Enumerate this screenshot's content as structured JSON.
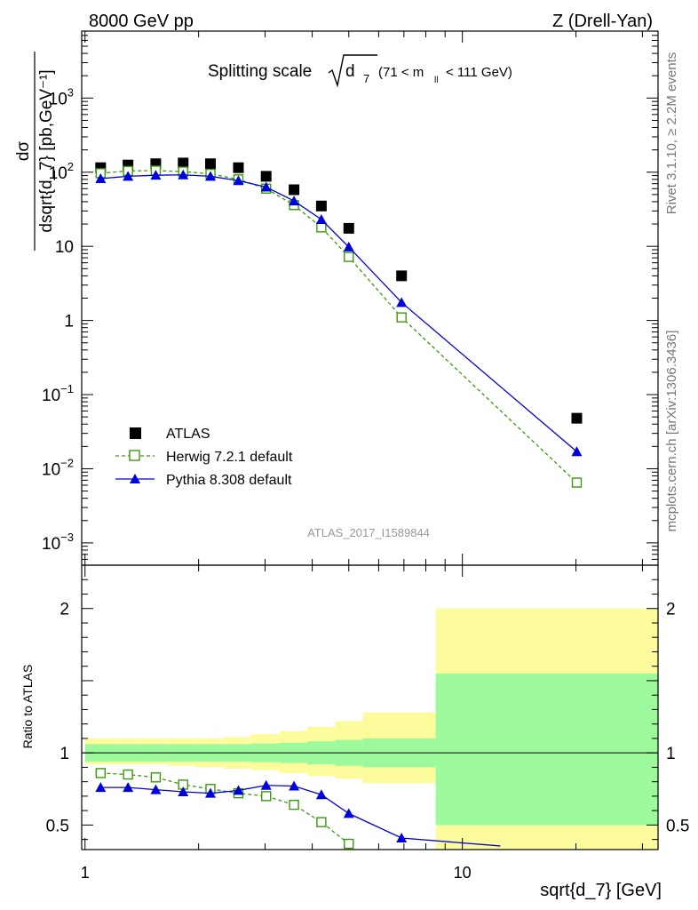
{
  "header": {
    "left": "8000 GeV pp",
    "right": "Z (Drell-Yan)"
  },
  "side_labels": {
    "rivet": "Rivet 3.1.10, ≥ 2.2M events",
    "mcplots": "mcplots.cern.ch [arXiv:1306.3436]"
  },
  "title": {
    "prefix": "Splitting scale",
    "var": "d",
    "var_sub": "7",
    "cut_open": "(71 < m",
    "cut_sub": "ll",
    "cut_close": "< 111 GeV)"
  },
  "analysis_id": "ATLAS_2017_I1589844",
  "colors": {
    "atlas": "#000000",
    "herwig": "#3a9a0c",
    "pythia": "#0000dd",
    "band_inner": "#9cf99c",
    "band_outer": "#fcfc9c"
  },
  "chart_data": [
    {
      "type": "scatter",
      "panel": "main",
      "xlabel": "sqrt{d_7} [GeV]",
      "ylabel": "dσ / dsqrt{d_7} [pb,GeV⁻¹]",
      "x_log": true,
      "y_log": true,
      "xlim": [
        0.98,
        33
      ],
      "ylim": [
        0.0005,
        8000
      ],
      "yticks": [
        {
          "v": 0.001,
          "m": "10",
          "e": "−3"
        },
        {
          "v": 0.01,
          "m": "10",
          "e": "−2"
        },
        {
          "v": 0.1,
          "m": "10",
          "e": "−1"
        },
        {
          "v": 1,
          "m": "1",
          "e": ""
        },
        {
          "v": 10,
          "m": "10",
          "e": ""
        },
        {
          "v": 100,
          "m": "10",
          "e": "2"
        },
        {
          "v": 1000,
          "m": "10",
          "e": "3"
        }
      ],
      "legend_position": "lower-left",
      "series": [
        {
          "name": "ATLAS",
          "marker": "square",
          "x": [
            1.1,
            1.3,
            1.54,
            1.82,
            2.15,
            2.55,
            3.02,
            3.58,
            4.23,
            5.0,
            6.9,
            20.1
          ],
          "y": [
            115,
            125,
            130,
            133,
            130,
            115,
            88,
            58,
            35,
            17.5,
            4.0,
            0.048
          ]
        },
        {
          "name": "Herwig 7.2.1 default",
          "marker": "open-square",
          "line": "dashed",
          "x": [
            1.1,
            1.3,
            1.54,
            1.82,
            2.15,
            2.55,
            3.02,
            3.58,
            4.23,
            5.0,
            6.9,
            20.1
          ],
          "y": [
            97,
            104,
            105,
            102,
            95,
            80,
            60,
            36,
            18,
            7.2,
            1.1,
            0.0065
          ]
        },
        {
          "name": "Pythia 8.308 default",
          "marker": "triangle",
          "line": "solid",
          "x": [
            1.1,
            1.3,
            1.54,
            1.82,
            2.15,
            2.55,
            3.02,
            3.58,
            4.23,
            5.0,
            6.9,
            20.1
          ],
          "y": [
            82,
            88,
            91,
            92,
            88,
            77,
            63,
            41,
            23,
            9.8,
            1.75,
            0.017
          ]
        }
      ]
    },
    {
      "type": "line",
      "panel": "ratio",
      "ylabel": "Ratio to ATLAS",
      "xlabel": "sqrt{d_7} [GeV]",
      "x_log": true,
      "xlim": [
        0.98,
        33
      ],
      "ylim": [
        0.33,
        2.3
      ],
      "yticks": [
        0.5,
        1,
        2
      ],
      "xticks": [
        1,
        10
      ],
      "bands": {
        "edges": [
          1,
          1.2,
          1.41,
          1.66,
          1.97,
          2.33,
          2.76,
          3.27,
          3.88,
          4.6,
          5.45,
          8.5,
          33
        ],
        "inner": [
          [
            0.94,
            1.06
          ],
          [
            0.94,
            1.06
          ],
          [
            0.94,
            1.06
          ],
          [
            0.94,
            1.06
          ],
          [
            0.94,
            1.06
          ],
          [
            0.94,
            1.06
          ],
          [
            0.935,
            1.065
          ],
          [
            0.93,
            1.07
          ],
          [
            0.92,
            1.08
          ],
          [
            0.91,
            1.09
          ],
          [
            0.9,
            1.1
          ],
          [
            0.5,
            1.55
          ]
        ],
        "outer": [
          [
            0.92,
            1.1
          ],
          [
            0.92,
            1.1
          ],
          [
            0.92,
            1.1
          ],
          [
            0.91,
            1.1
          ],
          [
            0.9,
            1.1
          ],
          [
            0.89,
            1.11
          ],
          [
            0.88,
            1.13
          ],
          [
            0.86,
            1.15
          ],
          [
            0.84,
            1.18
          ],
          [
            0.82,
            1.22
          ],
          [
            0.79,
            1.28
          ],
          [
            0.33,
            2.0
          ]
        ]
      },
      "series": [
        {
          "name": "Herwig 7.2.1 default",
          "marker": "open-square",
          "line": "dashed",
          "x": [
            1.1,
            1.3,
            1.54,
            1.82,
            2.15,
            2.55,
            3.02,
            3.58,
            4.23,
            5.0
          ],
          "y": [
            0.86,
            0.85,
            0.83,
            0.78,
            0.75,
            0.72,
            0.7,
            0.64,
            0.52,
            0.37
          ]
        },
        {
          "name": "Pythia 8.308 default",
          "marker": "triangle",
          "line": "solid",
          "x": [
            1.1,
            1.3,
            1.54,
            1.82,
            2.15,
            2.55,
            3.02,
            3.58,
            4.23,
            5.0,
            6.9,
            12.6
          ],
          "y": [
            0.76,
            0.76,
            0.745,
            0.73,
            0.72,
            0.74,
            0.775,
            0.77,
            0.71,
            0.58,
            0.41,
            0.355
          ]
        }
      ]
    }
  ]
}
